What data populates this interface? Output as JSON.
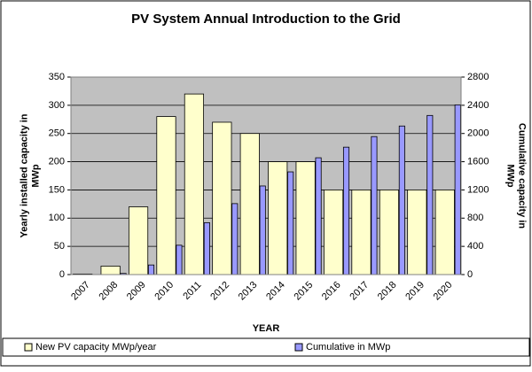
{
  "chart_data": {
    "type": "bar",
    "title": "PV System Annual Introduction to the Grid",
    "xlabel": "YEAR",
    "ylabel": "Yearly installed capacity in MWp",
    "y2label": "Cumulative capacity in MWp",
    "categories": [
      "2007",
      "2008",
      "2009",
      "2010",
      "2011",
      "2012",
      "2013",
      "2014",
      "2015",
      "2016",
      "2017",
      "2018",
      "2019",
      "2020"
    ],
    "series": [
      {
        "name": "New PV capacity MWp/year",
        "color": "#ffffcc",
        "values": [
          1,
          15,
          120,
          280,
          320,
          270,
          250,
          200,
          200,
          150,
          150,
          150,
          150,
          150
        ]
      },
      {
        "name": "Cumulative in MWp",
        "color": "#9999ff",
        "axis": "y2",
        "values": [
          1,
          16,
          136,
          416,
          736,
          1006,
          1256,
          1456,
          1656,
          1806,
          1956,
          2106,
          2256,
          2406
        ]
      }
    ],
    "ylim": [
      0,
      350
    ],
    "yticks": [
      0,
      50,
      100,
      150,
      200,
      250,
      300,
      350
    ],
    "y2lim": [
      0,
      2800
    ],
    "y2ticks": [
      0,
      400,
      800,
      1200,
      1600,
      2000,
      2400,
      2800
    ],
    "grid": true,
    "legend": "bottom"
  }
}
